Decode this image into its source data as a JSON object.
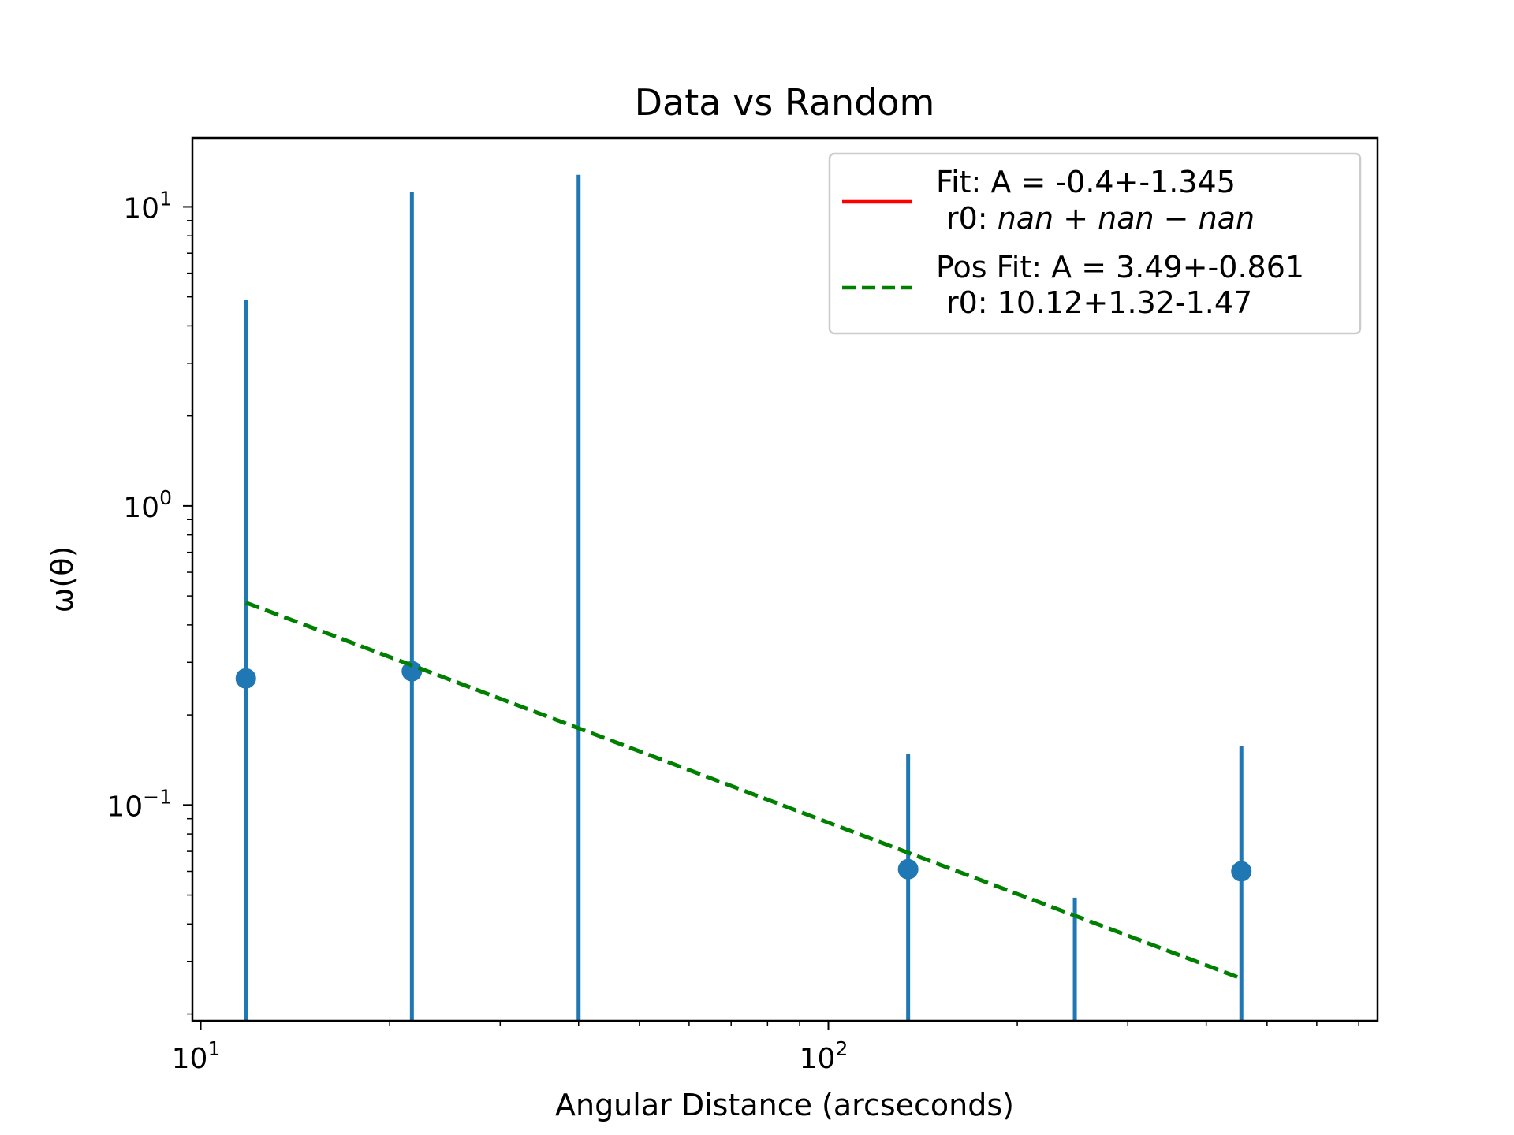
{
  "chart_data": {
    "type": "scatter",
    "title": "Data vs Random",
    "xlabel": "Angular Distance (arcseconds)",
    "ylabel": "ω(θ)",
    "xscale": "log",
    "yscale": "log",
    "xlim": [
      9.7,
      750
    ],
    "ylim": [
      0.019,
      17
    ],
    "x_ticks": [
      {
        "value": 10,
        "base": "10",
        "exp": "1"
      },
      {
        "value": 100,
        "base": "10",
        "exp": "2"
      }
    ],
    "y_ticks": [
      {
        "value": 10,
        "base": "10",
        "exp": "1"
      },
      {
        "value": 1,
        "base": "10",
        "exp": "0"
      },
      {
        "value": 0.1,
        "base": "10",
        "exp": "−1"
      }
    ],
    "grid": false,
    "legend_position": "top-right",
    "series": [
      {
        "kind": "errorbar",
        "color": "#1f77b4",
        "points": [
          {
            "x": 11.8,
            "y": 0.265,
            "err_low": 0.019,
            "err_high": 4.9,
            "marker": true
          },
          {
            "x": 21.7,
            "y": 0.28,
            "err_low": 0.019,
            "err_high": 11.2,
            "marker": true
          },
          {
            "x": 40,
            "y": null,
            "err_low": 0.019,
            "err_high": 12.8,
            "marker": false
          },
          {
            "x": 134,
            "y": 0.061,
            "err_low": 0.019,
            "err_high": 0.148,
            "marker": true
          },
          {
            "x": 247,
            "y": null,
            "err_low": 0.019,
            "err_high": 0.049,
            "marker": false
          },
          {
            "x": 455,
            "y": 0.06,
            "err_low": 0.019,
            "err_high": 0.158,
            "marker": true
          }
        ]
      },
      {
        "name": "Fit: A = -0.4+-1.345",
        "subtitle_prefix": "r0: ",
        "subtitle_math": "nan + nan − nan",
        "kind": "line",
        "style": "solid",
        "color": "#ff0000",
        "x": [],
        "y": []
      },
      {
        "name": "Pos Fit: A = 3.49+-0.861",
        "subtitle_prefix": "r0: 10.12+1.32-1.47",
        "subtitle_math": "",
        "kind": "line",
        "style": "dashed",
        "color": "#008000",
        "x": [
          11.8,
          455
        ],
        "y": [
          0.475,
          0.0263
        ]
      }
    ]
  }
}
